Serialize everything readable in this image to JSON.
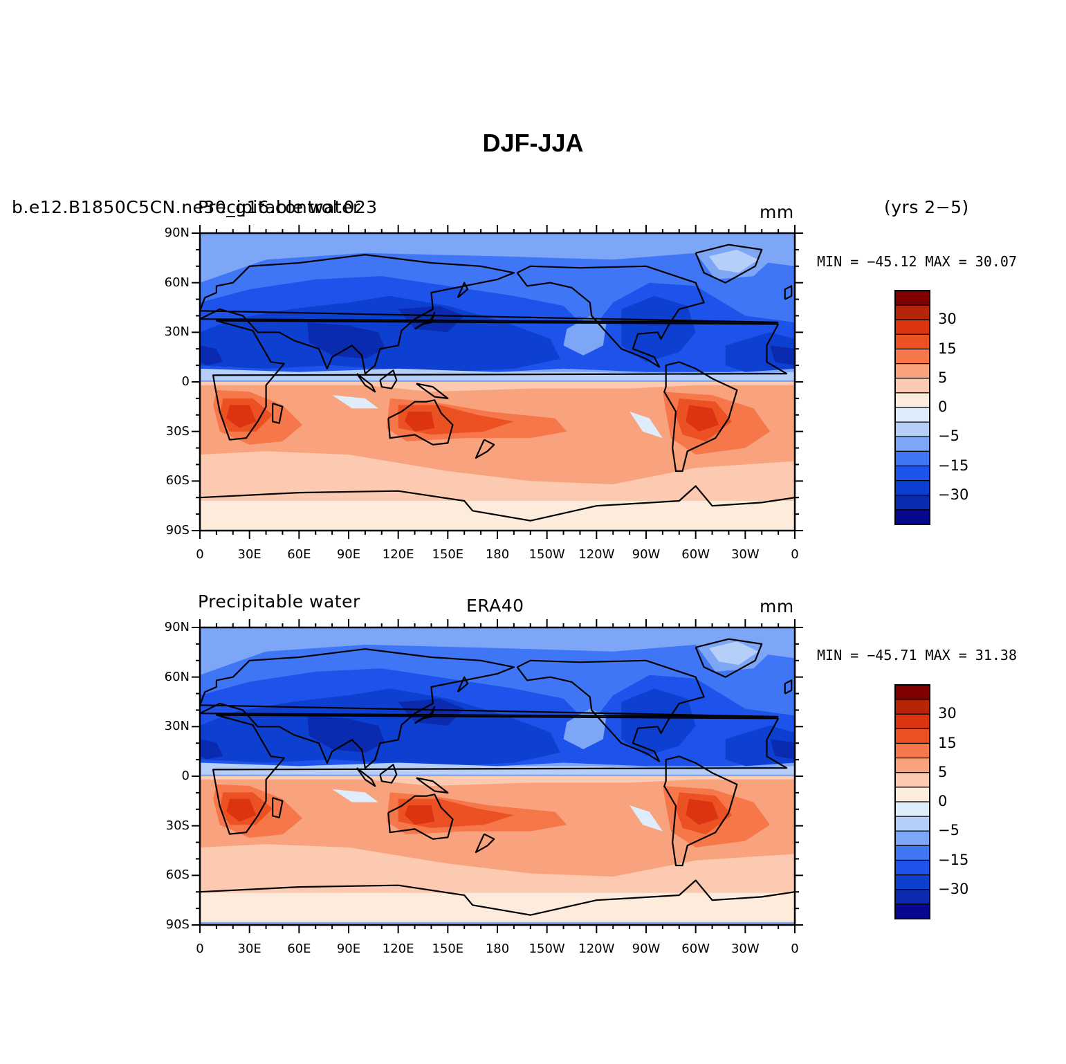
{
  "figure": {
    "title": "DJF-JJA",
    "season_note": "(yrs 2−5)",
    "colors": {
      "land_outline": "#000000",
      "levels": [
        "#08088e",
        "#0a2bb0",
        "#0d3fd0",
        "#1d53ea",
        "#3f76f5",
        "#7ea6f7",
        "#b5cff9",
        "#deecfc",
        "#fdebdb",
        "#fccab0",
        "#f9a37e",
        "#f6784a",
        "#ec5124",
        "#dc3410",
        "#b42607",
        "#7f0000"
      ]
    },
    "colorbar_labels": [
      "30",
      "15",
      "5",
      "0",
      "−5",
      "−15",
      "−30"
    ],
    "lat_labels": [
      "90N",
      "60N",
      "30N",
      "0",
      "30S",
      "60S",
      "90S"
    ],
    "lon_labels": [
      "0",
      "30E",
      "60E",
      "90E",
      "120E",
      "150E",
      "180",
      "150W",
      "120W",
      "90W",
      "60W",
      "30W",
      "0"
    ]
  },
  "panels": [
    {
      "left_title_a": "b.e12.B1850C5CN.ne30_g16.control.023",
      "left_title_b": "Precipitable water",
      "center_title": "",
      "units": "mm",
      "stats": "MIN = −45.12 MAX =  30.07"
    },
    {
      "left_title_a": "Precipitable water",
      "left_title_b": "",
      "center_title": "ERA40",
      "units": "mm",
      "stats": "MIN = −45.71 MAX =  31.38"
    }
  ],
  "chart_data": [
    {
      "type": "heatmap",
      "title": "Precipitable water DJF-JJA",
      "subtitle": "b.e12.B1850C5CN.ne30_g16.control.023 (yrs 2−5)",
      "units": "mm",
      "min": -45.12,
      "max": 30.07,
      "xlim": [
        0,
        360
      ],
      "ylim": [
        -90,
        90
      ],
      "contour_levels": [
        -40,
        -35,
        -30,
        -25,
        -20,
        -15,
        -10,
        -5,
        -2,
        0,
        2,
        5,
        10,
        15,
        20,
        25,
        30,
        35
      ]
    },
    {
      "type": "heatmap",
      "title": "Precipitable water DJF-JJA",
      "subtitle": "ERA40",
      "units": "mm",
      "min": -45.71,
      "max": 31.38,
      "xlim": [
        0,
        360
      ],
      "ylim": [
        -90,
        90
      ],
      "contour_levels": [
        -40,
        -35,
        -30,
        -25,
        -20,
        -15,
        -10,
        -5,
        -2,
        0,
        2,
        5,
        10,
        15,
        20,
        25,
        30,
        35
      ]
    }
  ]
}
